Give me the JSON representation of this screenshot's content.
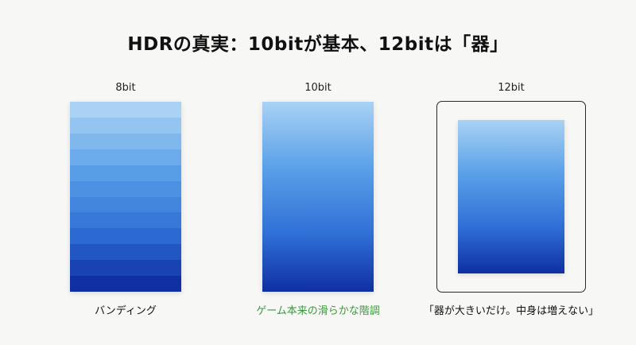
{
  "title": "HDRの真実：10bitが基本、12bitは「器」",
  "columns": [
    {
      "label": "8bit",
      "caption": "バンディング"
    },
    {
      "label": "10bit",
      "caption": "ゲーム本来の滑らかな階調"
    },
    {
      "label": "12bit",
      "caption": "「器が大きいだけ。中身は増えない」"
    }
  ],
  "colors": {
    "gradient_top": "#a9d2f4",
    "gradient_bottom": "#0f2fa3",
    "highlight_caption": "#3a9a3c"
  },
  "band_count": 12
}
